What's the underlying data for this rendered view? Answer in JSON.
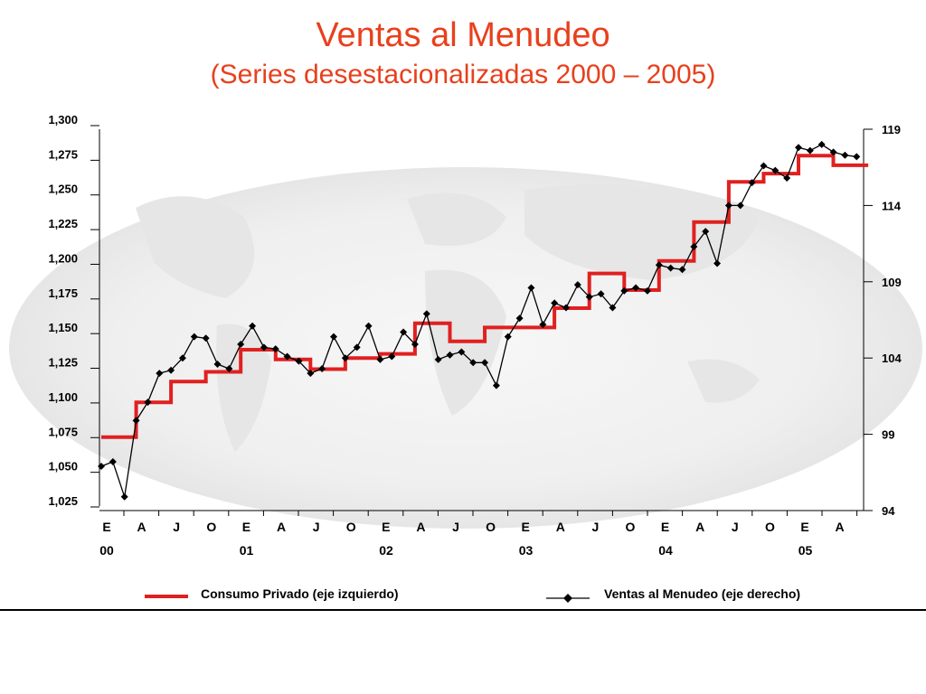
{
  "title": "Ventas al Menudeo",
  "subtitle": "(Series desestacionalizadas 2000 – 2005)",
  "colors": {
    "consumo": "#e02020",
    "ventas": "#000000",
    "title": "#e8401c"
  },
  "chart_data": {
    "type": "line",
    "title": "Ventas al Menudeo",
    "subtitle": "(Series desestacionalizadas 2000 – 2005)",
    "x_month_labels": [
      "E",
      "A",
      "J",
      "O",
      "E",
      "A",
      "J",
      "O",
      "E",
      "A",
      "J",
      "O",
      "E",
      "A",
      "J",
      "O",
      "E",
      "A",
      "J",
      "O",
      "E",
      "A"
    ],
    "x_year_labels": [
      "00",
      "01",
      "02",
      "03",
      "04",
      "05"
    ],
    "y_left": {
      "ticks": [
        "1,300",
        "1,275",
        "1,250",
        "1,225",
        "1,200",
        "1,175",
        "1,150",
        "1,125",
        "1,100",
        "1,075",
        "1,050",
        "1,025"
      ],
      "ylim": [
        1025,
        1300
      ]
    },
    "y_right": {
      "ticks": [
        "119",
        "114",
        "109",
        "104",
        "99",
        "94"
      ],
      "ylim": [
        94,
        119
      ]
    },
    "grid": false,
    "legend_position": "bottom",
    "series": [
      {
        "name": "Consumo Privado (eje izquierdo)",
        "axis": "left",
        "step": "quarterly",
        "values": [
          1078,
          1103,
          1118,
          1125,
          1141,
          1134,
          1127,
          1135,
          1138,
          1160,
          1147,
          1157,
          1157,
          1171,
          1196,
          1184,
          1205,
          1233,
          1262,
          1268,
          1281,
          1274
        ]
      },
      {
        "name": "Ventas al Menudeo (eje derecho)",
        "axis": "right",
        "values": [
          96.9,
          97.2,
          94.9,
          99.9,
          101.1,
          103.0,
          103.2,
          104.0,
          105.4,
          105.3,
          103.6,
          103.3,
          104.9,
          106.1,
          104.7,
          104.6,
          104.1,
          103.8,
          103.0,
          103.3,
          105.4,
          104.0,
          104.7,
          106.1,
          103.9,
          104.1,
          105.7,
          104.9,
          106.9,
          103.9,
          104.2,
          104.4,
          103.7,
          103.7,
          102.2,
          105.4,
          106.6,
          108.6,
          106.2,
          107.6,
          107.3,
          108.8,
          108.0,
          108.2,
          107.3,
          108.4,
          108.6,
          108.4,
          110.1,
          109.9,
          109.8,
          111.3,
          112.3,
          110.2,
          114.0,
          114.0,
          115.5,
          116.6,
          116.3,
          115.8,
          117.8,
          117.6,
          118.0,
          117.5,
          117.3,
          117.2
        ]
      }
    ]
  }
}
